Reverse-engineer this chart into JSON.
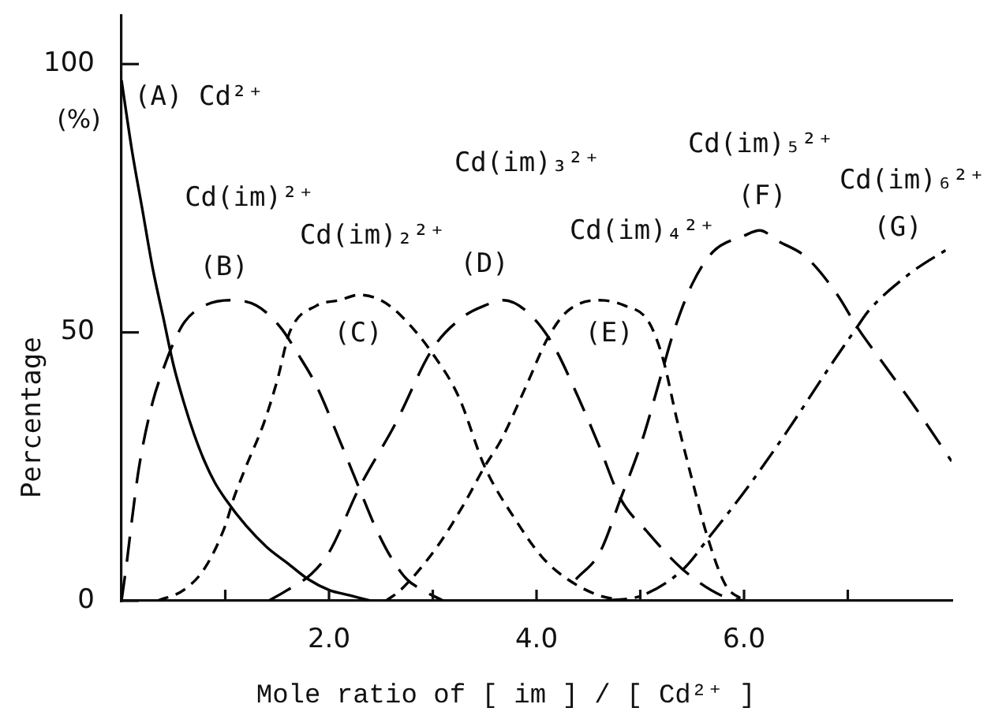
{
  "chart_data": {
    "type": "line",
    "xlabel": "Mole ratio of [ im ] / [ Cd²⁺ ]",
    "ylabel": "Percentage",
    "xlim": [
      0,
      8
    ],
    "ylim": [
      0,
      109
    ],
    "xticks": [
      {
        "value": 1,
        "label": null
      },
      {
        "value": 2,
        "label": "2.0"
      },
      {
        "value": 3,
        "label": null
      },
      {
        "value": 4,
        "label": "4.0"
      },
      {
        "value": 5,
        "label": null
      },
      {
        "value": 6,
        "label": "6.0"
      },
      {
        "value": 7,
        "label": null
      }
    ],
    "yticks": [
      0,
      50,
      100
    ],
    "grid": false,
    "legend": false,
    "marker": "none",
    "annotations": [
      "(%)",
      "(A) Cd²⁺",
      "Cd(im)²⁺",
      "(B)",
      "Cd(im)₂²⁺",
      "(C)",
      "Cd(im)₃²⁺",
      "(D)",
      "Cd(im)₄²⁺",
      "(E)",
      "Cd(im)₅²⁺",
      "(F)",
      "Cd(im)₆²⁺",
      "(G)"
    ],
    "series": [
      {
        "color": "#000000",
        "line_style": "solid",
        "x": [
          0,
          0.1,
          0.2,
          0.3,
          0.4,
          0.5,
          0.6,
          0.7,
          0.8,
          0.9,
          1.0,
          1.2,
          1.4,
          1.6,
          1.8,
          2.0,
          2.2,
          2.4
        ],
        "values": [
          97,
          84,
          73,
          62,
          53,
          44,
          37,
          31,
          26,
          22,
          19,
          14,
          10,
          7,
          4,
          2,
          1,
          0
        ]
      },
      {
        "color": "#000000",
        "line_style": "longdash",
        "x": [
          0,
          0.05,
          0.1,
          0.17,
          0.3,
          0.4,
          0.5,
          0.61,
          0.8,
          1.05,
          1.3,
          1.53,
          1.7,
          1.88,
          2.1,
          2.29,
          2.44,
          2.6,
          2.75,
          2.9,
          3.1
        ],
        "values": [
          0,
          7,
          15,
          25,
          37,
          43,
          48,
          52,
          55,
          56,
          55,
          51,
          46,
          40,
          30,
          21,
          14,
          8,
          4,
          2,
          0
        ]
      },
      {
        "color": "#000000",
        "line_style": "dashed",
        "x": [
          0.35,
          0.6,
          0.8,
          1.0,
          1.08,
          1.2,
          1.37,
          1.5,
          1.62,
          1.88,
          2.1,
          2.29,
          2.5,
          2.7,
          3.0,
          3.25,
          3.5,
          3.8,
          4.06,
          4.3,
          4.6,
          4.85
        ],
        "values": [
          0,
          2,
          6,
          14,
          19,
          25,
          33,
          41,
          50,
          55,
          56,
          57,
          56,
          53,
          46,
          38,
          25,
          15,
          8,
          4,
          1,
          0
        ]
      },
      {
        "color": "#000000",
        "line_style": "longdash",
        "x": [
          1.42,
          1.6,
          1.83,
          2.0,
          2.29,
          2.64,
          3.0,
          3.3,
          3.5,
          3.68,
          3.9,
          4.15,
          4.4,
          4.6,
          4.81,
          5.06,
          5.4,
          5.78,
          6.0
        ],
        "values": [
          0,
          2,
          5,
          9,
          21,
          33,
          47,
          53,
          55,
          56,
          54,
          48,
          38,
          29,
          19,
          13,
          6,
          1,
          0
        ]
      },
      {
        "color": "#000000",
        "line_style": "dashed",
        "x": [
          2.55,
          2.69,
          3.04,
          3.3,
          3.5,
          3.66,
          3.9,
          4.11,
          4.3,
          4.6,
          4.85,
          5.08,
          5.22,
          5.35,
          5.52,
          5.63,
          5.82,
          6.0
        ],
        "values": [
          0,
          2,
          10,
          18,
          25,
          30,
          40,
          49,
          54,
          56,
          55,
          52,
          45,
          34,
          21,
          13,
          3,
          0
        ]
      },
      {
        "color": "#000000",
        "line_style": "longdash",
        "x": [
          4.38,
          4.61,
          4.81,
          5.02,
          5.2,
          5.32,
          5.5,
          5.7,
          6.0,
          6.15,
          6.33,
          6.6,
          6.9,
          7.09,
          7.35,
          7.65,
          8.0
        ],
        "values": [
          4,
          9,
          19,
          30,
          42,
          50,
          59,
          65,
          68,
          69,
          67,
          64,
          57,
          51,
          44,
          36,
          26
        ]
      },
      {
        "color": "#000000",
        "line_style": "dashdot",
        "x": [
          4.66,
          5.02,
          5.42,
          5.67,
          6.03,
          6.43,
          6.84,
          7.09,
          7.2,
          7.6,
          8.0
        ],
        "values": [
          0,
          1,
          6,
          12,
          21,
          32,
          44,
          51,
          54,
          61,
          66
        ]
      }
    ]
  }
}
